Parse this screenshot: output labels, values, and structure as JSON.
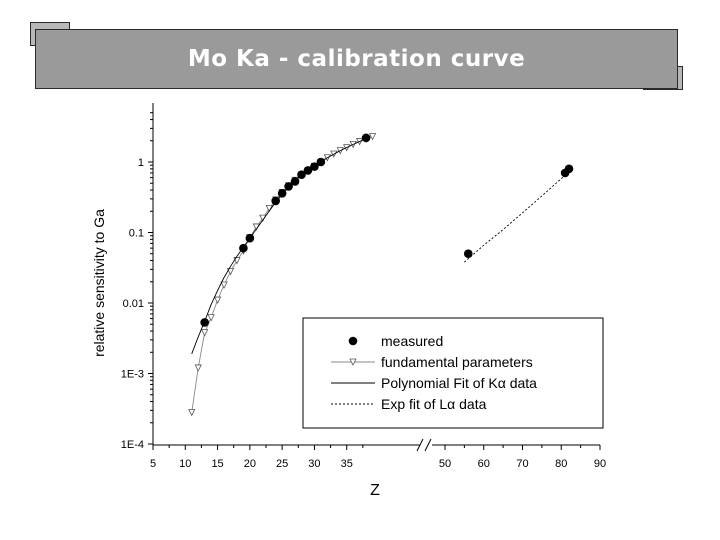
{
  "slide": {
    "title": "Mo Ka  - calibration curve"
  },
  "chart_data": {
    "type": "scatter",
    "title": "",
    "xlabel": "Z",
    "ylabel": "relative sensitivity to Ga",
    "y_scale": "log",
    "ylim": [
      0.0001,
      5
    ],
    "x_axis_break": true,
    "x_segments": [
      {
        "range": [
          5,
          40
        ],
        "ticks": [
          5,
          10,
          15,
          20,
          25,
          30,
          35
        ]
      },
      {
        "range": [
          45,
          90
        ],
        "ticks": [
          50,
          60,
          70,
          80,
          90
        ]
      }
    ],
    "y_ticks": [
      {
        "value": 0.0001,
        "label": "1E-4"
      },
      {
        "value": 0.001,
        "label": "1E-3"
      },
      {
        "value": 0.01,
        "label": "0.01"
      },
      {
        "value": 0.1,
        "label": "0.1"
      },
      {
        "value": 1,
        "label": "1"
      }
    ],
    "legend": {
      "placement": "bottom-right",
      "entries": [
        {
          "label": "measured",
          "style": "filled-circle"
        },
        {
          "label": "fundamental parameters",
          "style": "gray-line-triangle"
        },
        {
          "label": "Polynomial Fit of Kα data",
          "style": "solid"
        },
        {
          "label": "Exp fit of Lα data",
          "style": "dashed"
        }
      ]
    },
    "series": [
      {
        "name": "measured",
        "style": "filled-circle",
        "x": [
          13,
          19,
          20,
          24,
          25,
          26,
          27,
          28,
          29,
          30,
          31,
          38,
          56,
          81,
          82
        ],
        "y": [
          0.0053,
          0.06,
          0.083,
          0.28,
          0.36,
          0.45,
          0.53,
          0.66,
          0.76,
          0.86,
          1.0,
          2.2,
          0.05,
          0.7,
          0.8
        ]
      },
      {
        "name": "fundamental parameters",
        "style": "gray-line-triangle",
        "x": [
          11,
          12,
          13,
          14,
          15,
          16,
          17,
          18,
          19,
          20,
          21,
          22,
          23,
          24,
          25,
          26,
          27,
          28,
          29,
          30,
          31,
          32,
          33,
          34,
          35,
          36,
          37,
          38,
          39
        ],
        "y": [
          0.00028,
          0.0012,
          0.0038,
          0.0062,
          0.011,
          0.018,
          0.028,
          0.04,
          0.055,
          0.085,
          0.12,
          0.16,
          0.22,
          0.29,
          0.37,
          0.46,
          0.55,
          0.65,
          0.75,
          0.87,
          1.0,
          1.15,
          1.3,
          1.45,
          1.6,
          1.78,
          1.95,
          2.1,
          2.3
        ]
      },
      {
        "name": "Polynomial Fit of Kα data",
        "style": "solid",
        "x": [
          11,
          12,
          13,
          14,
          15,
          16,
          17,
          18,
          19,
          20,
          22,
          24,
          26,
          28,
          30,
          32,
          34,
          36,
          38
        ],
        "y": [
          0.0019,
          0.0033,
          0.0055,
          0.0095,
          0.015,
          0.023,
          0.033,
          0.046,
          0.062,
          0.083,
          0.15,
          0.27,
          0.44,
          0.65,
          0.88,
          1.15,
          1.45,
          1.78,
          2.15
        ]
      },
      {
        "name": "Exp fit of Lα data",
        "style": "dashed",
        "x": [
          55,
          60,
          65,
          70,
          75,
          80,
          82
        ],
        "y": [
          0.038,
          0.066,
          0.11,
          0.19,
          0.33,
          0.58,
          0.72
        ]
      }
    ]
  }
}
